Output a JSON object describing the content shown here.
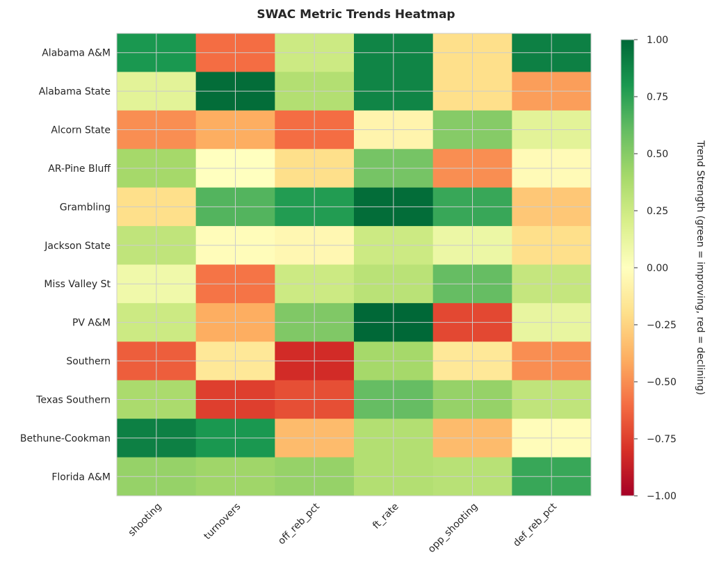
{
  "chart_data": {
    "type": "heatmap",
    "title": "SWAC Metric Trends Heatmap",
    "rows": [
      "Alabama A&M",
      "Alabama State",
      "Alcorn State",
      "AR-Pine Bluff",
      "Grambling",
      "Jackson State",
      "Miss Valley St",
      "PV A&M",
      "Southern",
      "Texas Southern",
      "Bethune-Cookman",
      "Florida A&M"
    ],
    "columns": [
      "shooting",
      "turnovers",
      "off_reb_pct",
      "ft_rate",
      "opp_shooting",
      "def_reb_pct"
    ],
    "values": [
      [
        0.8,
        -0.6,
        0.25,
        0.88,
        -0.2,
        0.9
      ],
      [
        0.15,
        0.98,
        0.35,
        0.88,
        -0.2,
        -0.45
      ],
      [
        -0.5,
        -0.4,
        -0.6,
        -0.07,
        0.5,
        0.15
      ],
      [
        0.4,
        0.0,
        -0.2,
        0.55,
        -0.5,
        -0.03
      ],
      [
        -0.2,
        0.65,
        0.78,
        0.98,
        0.72,
        -0.3
      ],
      [
        0.3,
        -0.02,
        -0.05,
        0.25,
        0.1,
        -0.2
      ],
      [
        0.08,
        -0.58,
        0.25,
        0.32,
        0.6,
        0.28
      ],
      [
        0.25,
        -0.4,
        0.52,
        1.0,
        -0.72,
        0.12
      ],
      [
        -0.65,
        -0.15,
        -0.82,
        0.4,
        -0.15,
        -0.5
      ],
      [
        0.38,
        -0.75,
        -0.7,
        0.6,
        0.45,
        0.3
      ],
      [
        0.9,
        0.8,
        -0.35,
        0.35,
        -0.35,
        -0.02
      ],
      [
        0.45,
        0.42,
        0.45,
        0.35,
        0.33,
        0.72
      ]
    ],
    "vmin": -1,
    "vmax": 1,
    "colormap": "RdYlGn",
    "colorbar_label": "Trend Strength (green = improving, red = declining)",
    "colorbar_ticks": [
      "1.00",
      "0.75",
      "0.50",
      "0.25",
      "0.00",
      "−0.25",
      "−0.50",
      "−0.75",
      "−1.00"
    ]
  }
}
